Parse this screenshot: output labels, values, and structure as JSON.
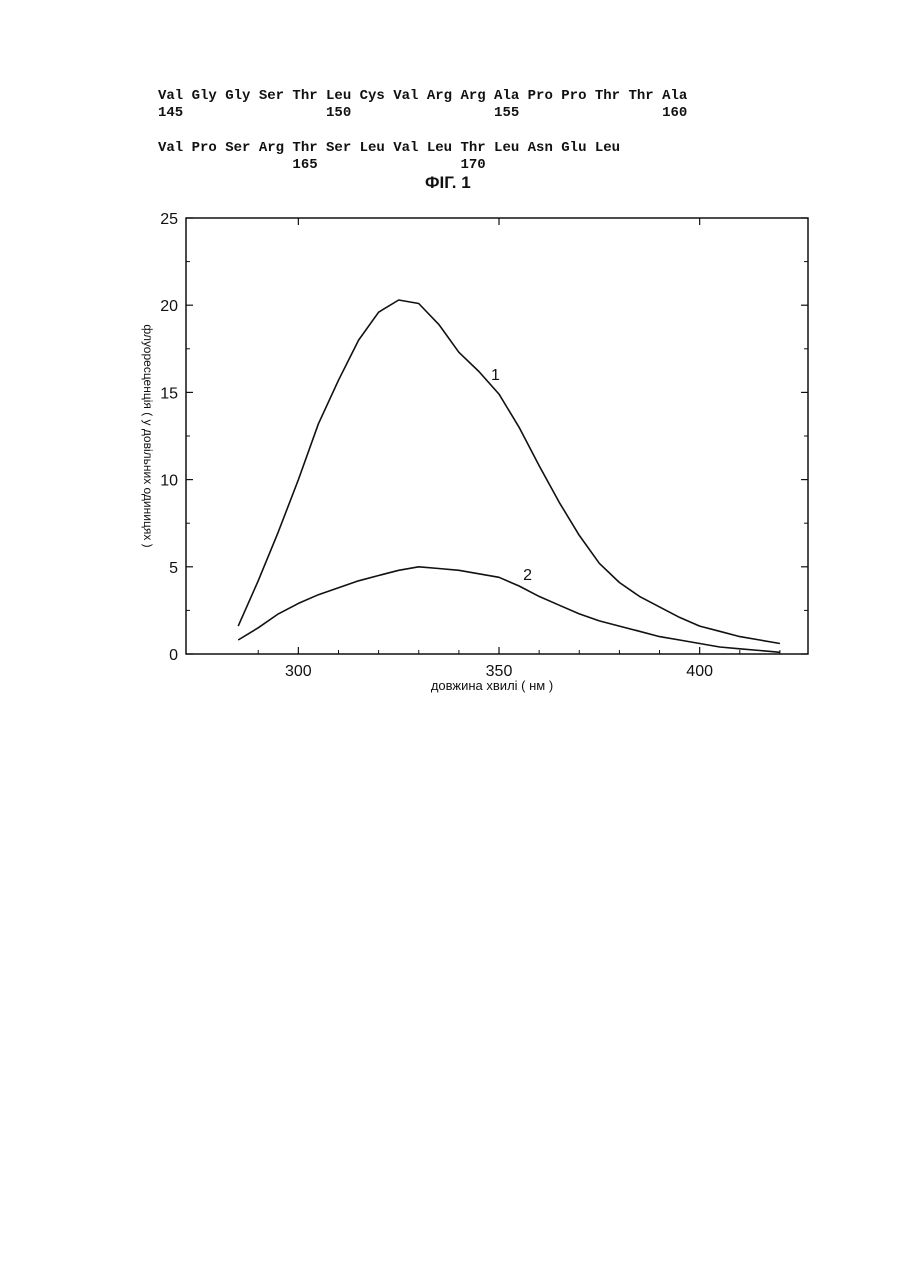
{
  "sequence": {
    "line1": "Val Gly Gly Ser Thr Leu Cys Val Arg Arg Ala Pro Pro Thr Thr Ala",
    "line1_numbers": "145                 150                 155                 160",
    "line2": "Val Pro Ser Arg Thr Ser Leu Val Leu Thr Leu Asn Glu Leu",
    "line2_numbers": "                165                 170"
  },
  "figure_label": "ФІГ. 1",
  "chart_data": {
    "type": "line",
    "title": "",
    "xlabel": "довжина хвилі ( нм )",
    "ylabel": "флуоресценція ( у довільних одиницях )",
    "xlim": [
      272,
      427
    ],
    "ylim": [
      0,
      25
    ],
    "x_ticks": [
      300,
      350,
      400
    ],
    "y_ticks": [
      0,
      5,
      10,
      15,
      20,
      25
    ],
    "grid": false,
    "legend": "none",
    "series": [
      {
        "name": "1",
        "x": [
          285,
          290,
          295,
          300,
          305,
          310,
          315,
          320,
          325,
          330,
          335,
          340,
          345,
          350,
          355,
          360,
          365,
          370,
          375,
          380,
          385,
          390,
          395,
          400,
          405,
          410,
          415,
          420
        ],
        "values": [
          1.6,
          4.2,
          7.0,
          10.0,
          13.2,
          15.7,
          18.0,
          19.6,
          20.3,
          20.1,
          18.9,
          17.3,
          16.2,
          14.9,
          13.0,
          10.8,
          8.7,
          6.8,
          5.2,
          4.1,
          3.3,
          2.7,
          2.1,
          1.6,
          1.3,
          1.0,
          0.8,
          0.6
        ]
      },
      {
        "name": "2",
        "x": [
          285,
          290,
          295,
          300,
          305,
          310,
          315,
          320,
          325,
          330,
          335,
          340,
          345,
          350,
          355,
          360,
          365,
          370,
          375,
          380,
          385,
          390,
          395,
          400,
          405,
          410,
          415,
          420
        ],
        "values": [
          0.8,
          1.5,
          2.3,
          2.9,
          3.4,
          3.8,
          4.2,
          4.5,
          4.8,
          5.0,
          4.9,
          4.8,
          4.6,
          4.4,
          3.9,
          3.3,
          2.8,
          2.3,
          1.9,
          1.6,
          1.3,
          1.0,
          0.8,
          0.6,
          0.4,
          0.3,
          0.2,
          0.1
        ]
      }
    ]
  }
}
